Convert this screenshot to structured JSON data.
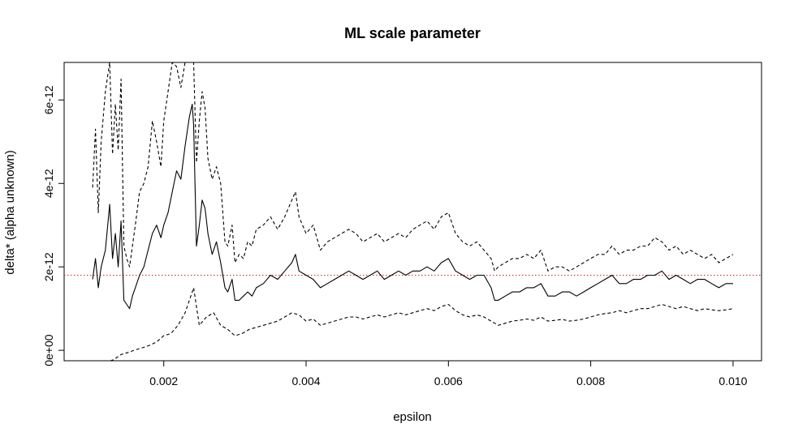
{
  "chart_data": {
    "type": "line",
    "title": "ML scale parameter",
    "xlabel": "epsilon",
    "ylabel": "delta* (alpha unknown)",
    "xlim": [
      0.0006,
      0.0104
    ],
    "ylim": [
      -2.5e-13,
      6.9e-12
    ],
    "x_ticks": [
      0.002,
      0.004,
      0.006,
      0.008,
      0.01
    ],
    "x_tick_labels": [
      "0.002",
      "0.004",
      "0.006",
      "0.008",
      "0.010"
    ],
    "y_ticks": [
      0,
      2e-12,
      4e-12,
      6e-12
    ],
    "y_tick_labels": [
      "0e+00",
      "2e-12",
      "4e-12",
      "6e-12"
    ],
    "grid": false,
    "reference_line": {
      "y": 1.8e-12,
      "color": "#d62728",
      "style": "dotted"
    },
    "series": [
      {
        "style": "solid",
        "color": "#000000",
        "x": [
          0.001,
          0.00104,
          0.00108,
          0.00112,
          0.00118,
          0.00124,
          0.00128,
          0.00132,
          0.00136,
          0.0014,
          0.00144,
          0.00148,
          0.00152,
          0.00156,
          0.0016,
          0.00166,
          0.00172,
          0.00178,
          0.00184,
          0.0019,
          0.00196,
          0.002,
          0.00206,
          0.00212,
          0.00218,
          0.00224,
          0.0023,
          0.00236,
          0.0024,
          0.00242,
          0.00246,
          0.0025,
          0.00254,
          0.00258,
          0.00262,
          0.00268,
          0.00274,
          0.0028,
          0.00286,
          0.0029,
          0.00296,
          0.003,
          0.00306,
          0.00312,
          0.00318,
          0.00324,
          0.0033,
          0.0034,
          0.0035,
          0.0036,
          0.0037,
          0.0038,
          0.00385,
          0.0039,
          0.004,
          0.0041,
          0.0042,
          0.0043,
          0.0044,
          0.0045,
          0.0046,
          0.0047,
          0.0048,
          0.0049,
          0.005,
          0.0051,
          0.0052,
          0.0053,
          0.0054,
          0.0055,
          0.0056,
          0.0057,
          0.0058,
          0.0059,
          0.006,
          0.0061,
          0.0062,
          0.0063,
          0.0064,
          0.0065,
          0.0066,
          0.00665,
          0.0067,
          0.0068,
          0.0069,
          0.007,
          0.0071,
          0.0072,
          0.0073,
          0.0074,
          0.0075,
          0.0076,
          0.0077,
          0.0078,
          0.0079,
          0.008,
          0.0081,
          0.0082,
          0.0083,
          0.0084,
          0.0085,
          0.0086,
          0.0087,
          0.0088,
          0.0089,
          0.009,
          0.0091,
          0.0092,
          0.0093,
          0.0094,
          0.0095,
          0.0096,
          0.0097,
          0.0098,
          0.0099,
          0.01
        ],
        "y": [
          1.7e-12,
          2.2e-12,
          1.5e-12,
          2e-12,
          2.4e-12,
          3.5e-12,
          2.2e-12,
          2.8e-12,
          2e-12,
          3.1e-12,
          1.2e-12,
          1.1e-12,
          1e-12,
          1.3e-12,
          1.5e-12,
          1.8e-12,
          2e-12,
          2.4e-12,
          2.8e-12,
          3e-12,
          2.7e-12,
          3e-12,
          3.3e-12,
          3.8e-12,
          4.3e-12,
          4.1e-12,
          4.9e-12,
          5.6e-12,
          5.9e-12,
          5.4e-12,
          2.5e-12,
          3e-12,
          3.6e-12,
          3.4e-12,
          2.8e-12,
          2.3e-12,
          2.6e-12,
          2.1e-12,
          1.5e-12,
          1.4e-12,
          1.7e-12,
          1.2e-12,
          1.2e-12,
          1.3e-12,
          1.4e-12,
          1.3e-12,
          1.5e-12,
          1.6e-12,
          1.8e-12,
          1.7e-12,
          1.9e-12,
          2.1e-12,
          2.3e-12,
          1.9e-12,
          1.8e-12,
          1.7e-12,
          1.5e-12,
          1.6e-12,
          1.7e-12,
          1.8e-12,
          1.9e-12,
          1.8e-12,
          1.7e-12,
          1.8e-12,
          1.9e-12,
          1.7e-12,
          1.8e-12,
          1.9e-12,
          1.8e-12,
          1.9e-12,
          1.9e-12,
          2e-12,
          1.9e-12,
          2.1e-12,
          2.2e-12,
          1.9e-12,
          1.8e-12,
          1.7e-12,
          1.8e-12,
          1.8e-12,
          1.5e-12,
          1.2e-12,
          1.2e-12,
          1.3e-12,
          1.4e-12,
          1.4e-12,
          1.5e-12,
          1.5e-12,
          1.6e-12,
          1.3e-12,
          1.3e-12,
          1.4e-12,
          1.4e-12,
          1.3e-12,
          1.4e-12,
          1.5e-12,
          1.6e-12,
          1.7e-12,
          1.8e-12,
          1.6e-12,
          1.6e-12,
          1.7e-12,
          1.7e-12,
          1.8e-12,
          1.8e-12,
          1.9e-12,
          1.7e-12,
          1.8e-12,
          1.7e-12,
          1.6e-12,
          1.7e-12,
          1.7e-12,
          1.6e-12,
          1.5e-12,
          1.6e-12,
          1.6e-12
        ]
      },
      {
        "style": "dashed",
        "color": "#000000",
        "x": [
          0.001,
          0.00104,
          0.00108,
          0.00112,
          0.00118,
          0.00124,
          0.00128,
          0.00132,
          0.00136,
          0.0014,
          0.00144,
          0.00148,
          0.00152,
          0.00156,
          0.0016,
          0.00166,
          0.00172,
          0.00178,
          0.00184,
          0.0019,
          0.00196,
          0.002,
          0.00206,
          0.00212,
          0.00218,
          0.00224,
          0.0023,
          0.00236,
          0.0024,
          0.00242,
          0.00246,
          0.0025,
          0.00254,
          0.00258,
          0.00262,
          0.00268,
          0.00274,
          0.0028,
          0.00286,
          0.0029,
          0.00296,
          0.003,
          0.00306,
          0.00312,
          0.00318,
          0.00324,
          0.0033,
          0.0034,
          0.0035,
          0.0036,
          0.0037,
          0.0038,
          0.00385,
          0.0039,
          0.004,
          0.0041,
          0.0042,
          0.0043,
          0.0044,
          0.0045,
          0.0046,
          0.0047,
          0.0048,
          0.0049,
          0.005,
          0.0051,
          0.0052,
          0.0053,
          0.0054,
          0.0055,
          0.0056,
          0.0057,
          0.0058,
          0.0059,
          0.006,
          0.0061,
          0.0062,
          0.0063,
          0.0064,
          0.0065,
          0.0066,
          0.00665,
          0.0067,
          0.0068,
          0.0069,
          0.007,
          0.0071,
          0.0072,
          0.0073,
          0.0074,
          0.0075,
          0.0076,
          0.0077,
          0.0078,
          0.0079,
          0.008,
          0.0081,
          0.0082,
          0.0083,
          0.0084,
          0.0085,
          0.0086,
          0.0087,
          0.0088,
          0.0089,
          0.009,
          0.0091,
          0.0092,
          0.0093,
          0.0094,
          0.0095,
          0.0096,
          0.0097,
          0.0098,
          0.0099,
          0.01
        ],
        "y": [
          3.9e-12,
          5.3e-12,
          3.3e-12,
          5e-12,
          6.2e-12,
          6.9e-12,
          4.7e-12,
          5.9e-12,
          4.8e-12,
          6.5e-12,
          2.5e-12,
          2.2e-12,
          2e-12,
          2.5e-12,
          3e-12,
          3.8e-12,
          4e-12,
          4.4e-12,
          5.5e-12,
          5e-12,
          4.4e-12,
          5.5e-12,
          6.2e-12,
          6.9e-12,
          6.8e-12,
          6.3e-12,
          6.9e-12,
          6.9e-12,
          6.9e-12,
          6.9e-12,
          4.5e-12,
          5.5e-12,
          6.2e-12,
          5.8e-12,
          4.6e-12,
          4.1e-12,
          4.4e-12,
          4e-12,
          2.6e-12,
          2.5e-12,
          3e-12,
          2.1e-12,
          2.3e-12,
          2.2e-12,
          2.6e-12,
          2.5e-12,
          2.9e-12,
          3e-12,
          3.2e-12,
          2.9e-12,
          3.2e-12,
          3.6e-12,
          3.8e-12,
          3.2e-12,
          2.8e-12,
          3e-12,
          2.4e-12,
          2.6e-12,
          2.7e-12,
          2.8e-12,
          2.9e-12,
          2.8e-12,
          2.6e-12,
          2.7e-12,
          2.8e-12,
          2.6e-12,
          2.7e-12,
          2.8e-12,
          2.7e-12,
          2.9e-12,
          3e-12,
          3.1e-12,
          2.9e-12,
          3.2e-12,
          3.3e-12,
          2.8e-12,
          2.6e-12,
          2.5e-12,
          2.6e-12,
          2.4e-12,
          2.2e-12,
          1.9e-12,
          2e-12,
          2.1e-12,
          2.2e-12,
          2.2e-12,
          2.3e-12,
          2.2e-12,
          2.4e-12,
          1.9e-12,
          2e-12,
          2e-12,
          1.9e-12,
          2e-12,
          2.1e-12,
          2.2e-12,
          2.3e-12,
          2.3e-12,
          2.5e-12,
          2.3e-12,
          2.4e-12,
          2.4e-12,
          2.5e-12,
          2.5e-12,
          2.7e-12,
          2.6e-12,
          2.4e-12,
          2.5e-12,
          2.3e-12,
          2.4e-12,
          2.3e-12,
          2.2e-12,
          2.3e-12,
          2.1e-12,
          2.2e-12,
          2.3e-12
        ]
      },
      {
        "style": "dashed",
        "color": "#000000",
        "x": [
          0.00125,
          0.0013,
          0.0014,
          0.0015,
          0.0016,
          0.0017,
          0.0018,
          0.0019,
          0.002,
          0.0021,
          0.0022,
          0.0023,
          0.0024,
          0.00242,
          0.0025,
          0.0026,
          0.0027,
          0.0028,
          0.0029,
          0.003,
          0.0031,
          0.0032,
          0.0033,
          0.0034,
          0.0035,
          0.0036,
          0.0037,
          0.0038,
          0.0039,
          0.004,
          0.0041,
          0.0042,
          0.0043,
          0.0044,
          0.0045,
          0.0046,
          0.0047,
          0.0048,
          0.0049,
          0.005,
          0.0051,
          0.0052,
          0.0053,
          0.0054,
          0.0055,
          0.0056,
          0.0057,
          0.0058,
          0.0059,
          0.006,
          0.0061,
          0.0062,
          0.0063,
          0.0064,
          0.0065,
          0.0066,
          0.0067,
          0.0068,
          0.0069,
          0.007,
          0.0071,
          0.0072,
          0.0073,
          0.0074,
          0.0075,
          0.0076,
          0.0077,
          0.0078,
          0.0079,
          0.008,
          0.0081,
          0.0082,
          0.0083,
          0.0084,
          0.0085,
          0.0086,
          0.0087,
          0.0088,
          0.0089,
          0.009,
          0.0091,
          0.0092,
          0.0093,
          0.0094,
          0.0095,
          0.0096,
          0.0097,
          0.0098,
          0.0099,
          0.01
        ],
        "y": [
          -2.5e-13,
          -2.2e-13,
          -1e-13,
          -5e-14,
          1e-14,
          6e-14,
          1.2e-13,
          2e-13,
          3.5e-13,
          4e-13,
          6e-13,
          9e-13,
          1.4e-12,
          1.5e-12,
          6e-13,
          8e-13,
          9e-13,
          6e-13,
          5e-13,
          3.5e-13,
          4e-13,
          5e-13,
          5.5e-13,
          6e-13,
          6.5e-13,
          7e-13,
          8e-13,
          9e-13,
          8.5e-13,
          7e-13,
          7.5e-13,
          6e-13,
          6.5e-13,
          7e-13,
          7.5e-13,
          8e-13,
          8e-13,
          7.5e-13,
          8e-13,
          8.5e-13,
          8e-13,
          8.5e-13,
          9e-13,
          8.5e-13,
          9e-13,
          9.5e-13,
          1e-12,
          9.5e-13,
          1.05e-12,
          1.1e-12,
          9.5e-13,
          8.5e-13,
          8e-13,
          8.5e-13,
          8e-13,
          7e-13,
          6e-13,
          6.5e-13,
          7e-13,
          7.2e-13,
          7.5e-13,
          7.2e-13,
          8e-13,
          7e-13,
          7.2e-13,
          7.4e-13,
          7e-13,
          7.2e-13,
          7.5e-13,
          8e-13,
          8.5e-13,
          8.8e-13,
          9e-13,
          9.5e-13,
          9e-13,
          9.5e-13,
          1e-12,
          1e-12,
          1.05e-12,
          1.1e-12,
          1.05e-12,
          1e-12,
          1.05e-12,
          1e-12,
          9.5e-13,
          1e-12,
          9.7e-13,
          9.5e-13,
          9.7e-13,
          1e-12
        ]
      }
    ]
  }
}
